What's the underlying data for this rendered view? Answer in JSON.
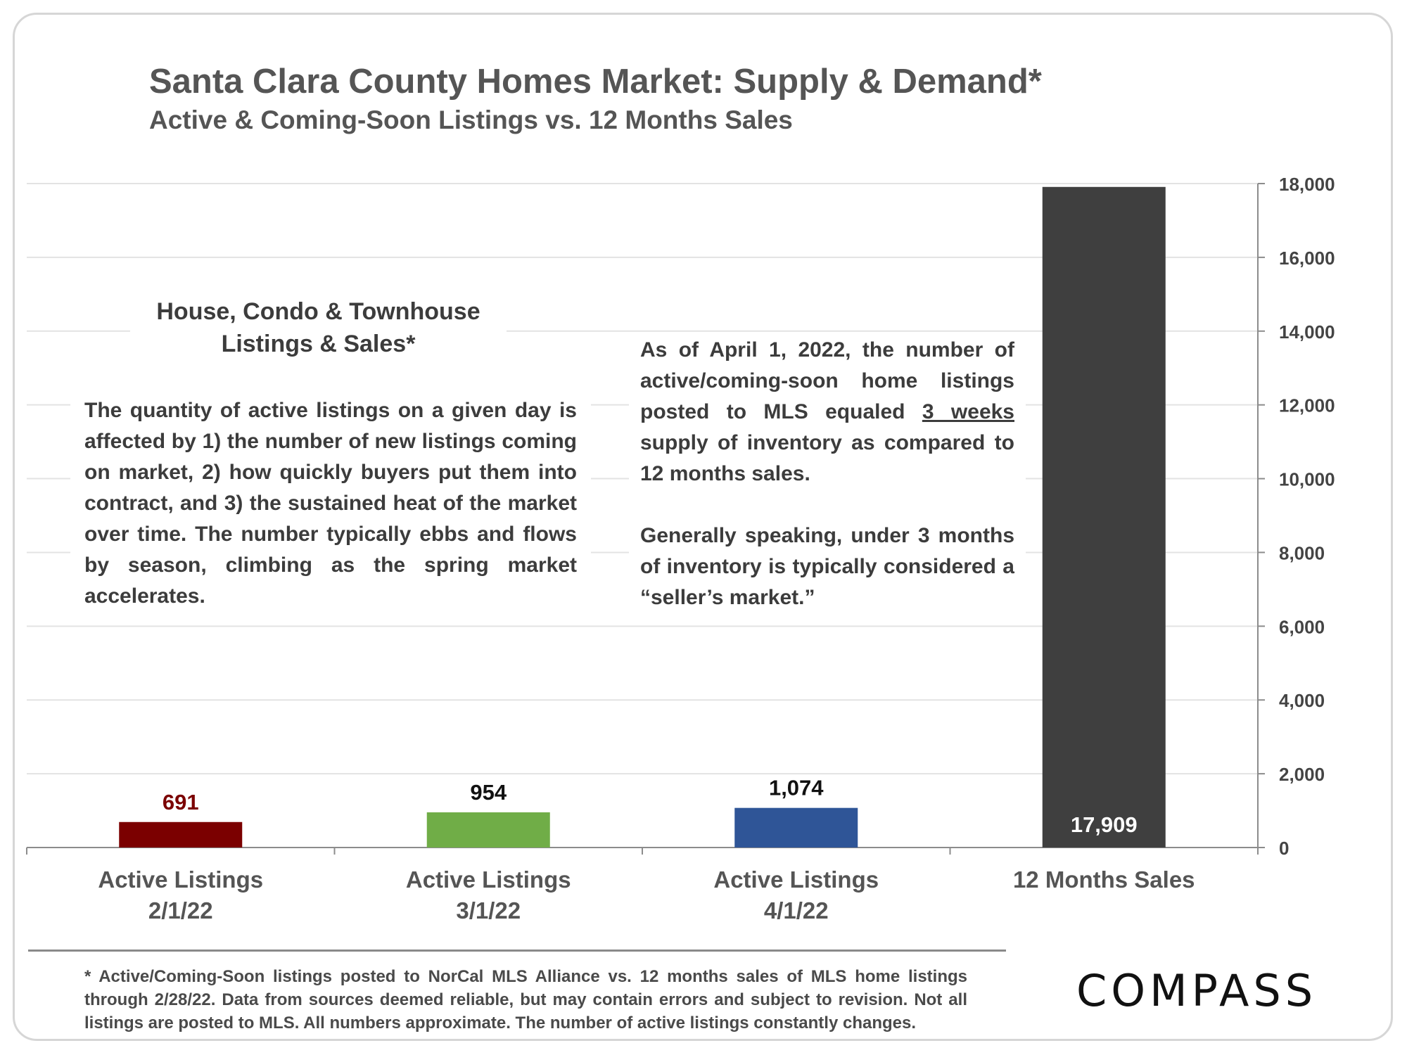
{
  "title": "Santa Clara County Homes Market: Supply & Demand*",
  "subtitle": "Active & Coming-Soon Listings vs. 12 Months Sales",
  "notes": {
    "left_title": "House, Condo & Townhouse Listings & Sales*",
    "left_body": "The quantity of active listings on a given day is affected by 1) the number of new listings coming on market, 2) how quickly buyers put them into contract, and 3) the sustained heat of the market over time. The number typically ebbs and flows by season, climbing as the spring market accelerates.",
    "right_p1_start": "As of April 1, 2022, the number of active/coming-soon home listings posted to MLS equaled ",
    "right_p1_emph": "3 weeks",
    "right_p1_end": " supply of inventory as compared to 12 months sales.",
    "right_p2": "Generally speaking, under 3 months of inventory is typically considered a “seller’s market.”"
  },
  "footnote": "* Active/Coming-Soon listings posted to NorCal MLS Alliance vs. 12 months sales of MLS home listings through 2/28/22. Data from sources deemed reliable, but may contain errors and subject to revision. Not all listings are posted to MLS. All numbers approximate. The number of active listings constantly changes.",
  "logo": "COMPASS",
  "chart_data": {
    "type": "bar",
    "categories": [
      [
        "Active Listings",
        "2/1/22"
      ],
      [
        "Active Listings",
        "3/1/22"
      ],
      [
        "Active Listings",
        "4/1/22"
      ],
      [
        "12 Months Sales"
      ]
    ],
    "values": [
      691,
      954,
      1074,
      17909
    ],
    "value_labels": [
      "691",
      "954",
      "1,074",
      "17,909"
    ],
    "colors": [
      "#7b0000",
      "#70ad47",
      "#2f5597",
      "#3f3f3f"
    ],
    "label_colors": [
      "#7b0000",
      "#111111",
      "#111111",
      "#ffffff"
    ],
    "label_inside": [
      false,
      false,
      false,
      true
    ],
    "ylim": [
      0,
      18000
    ],
    "yticks": [
      0,
      2000,
      4000,
      6000,
      8000,
      10000,
      12000,
      14000,
      16000,
      18000
    ],
    "ytick_labels": [
      "0",
      "2,000",
      "4,000",
      "6,000",
      "8,000",
      "10,000",
      "12,000",
      "14,000",
      "16,000",
      "18,000"
    ],
    "y_axis_side": "right",
    "grid": true
  }
}
